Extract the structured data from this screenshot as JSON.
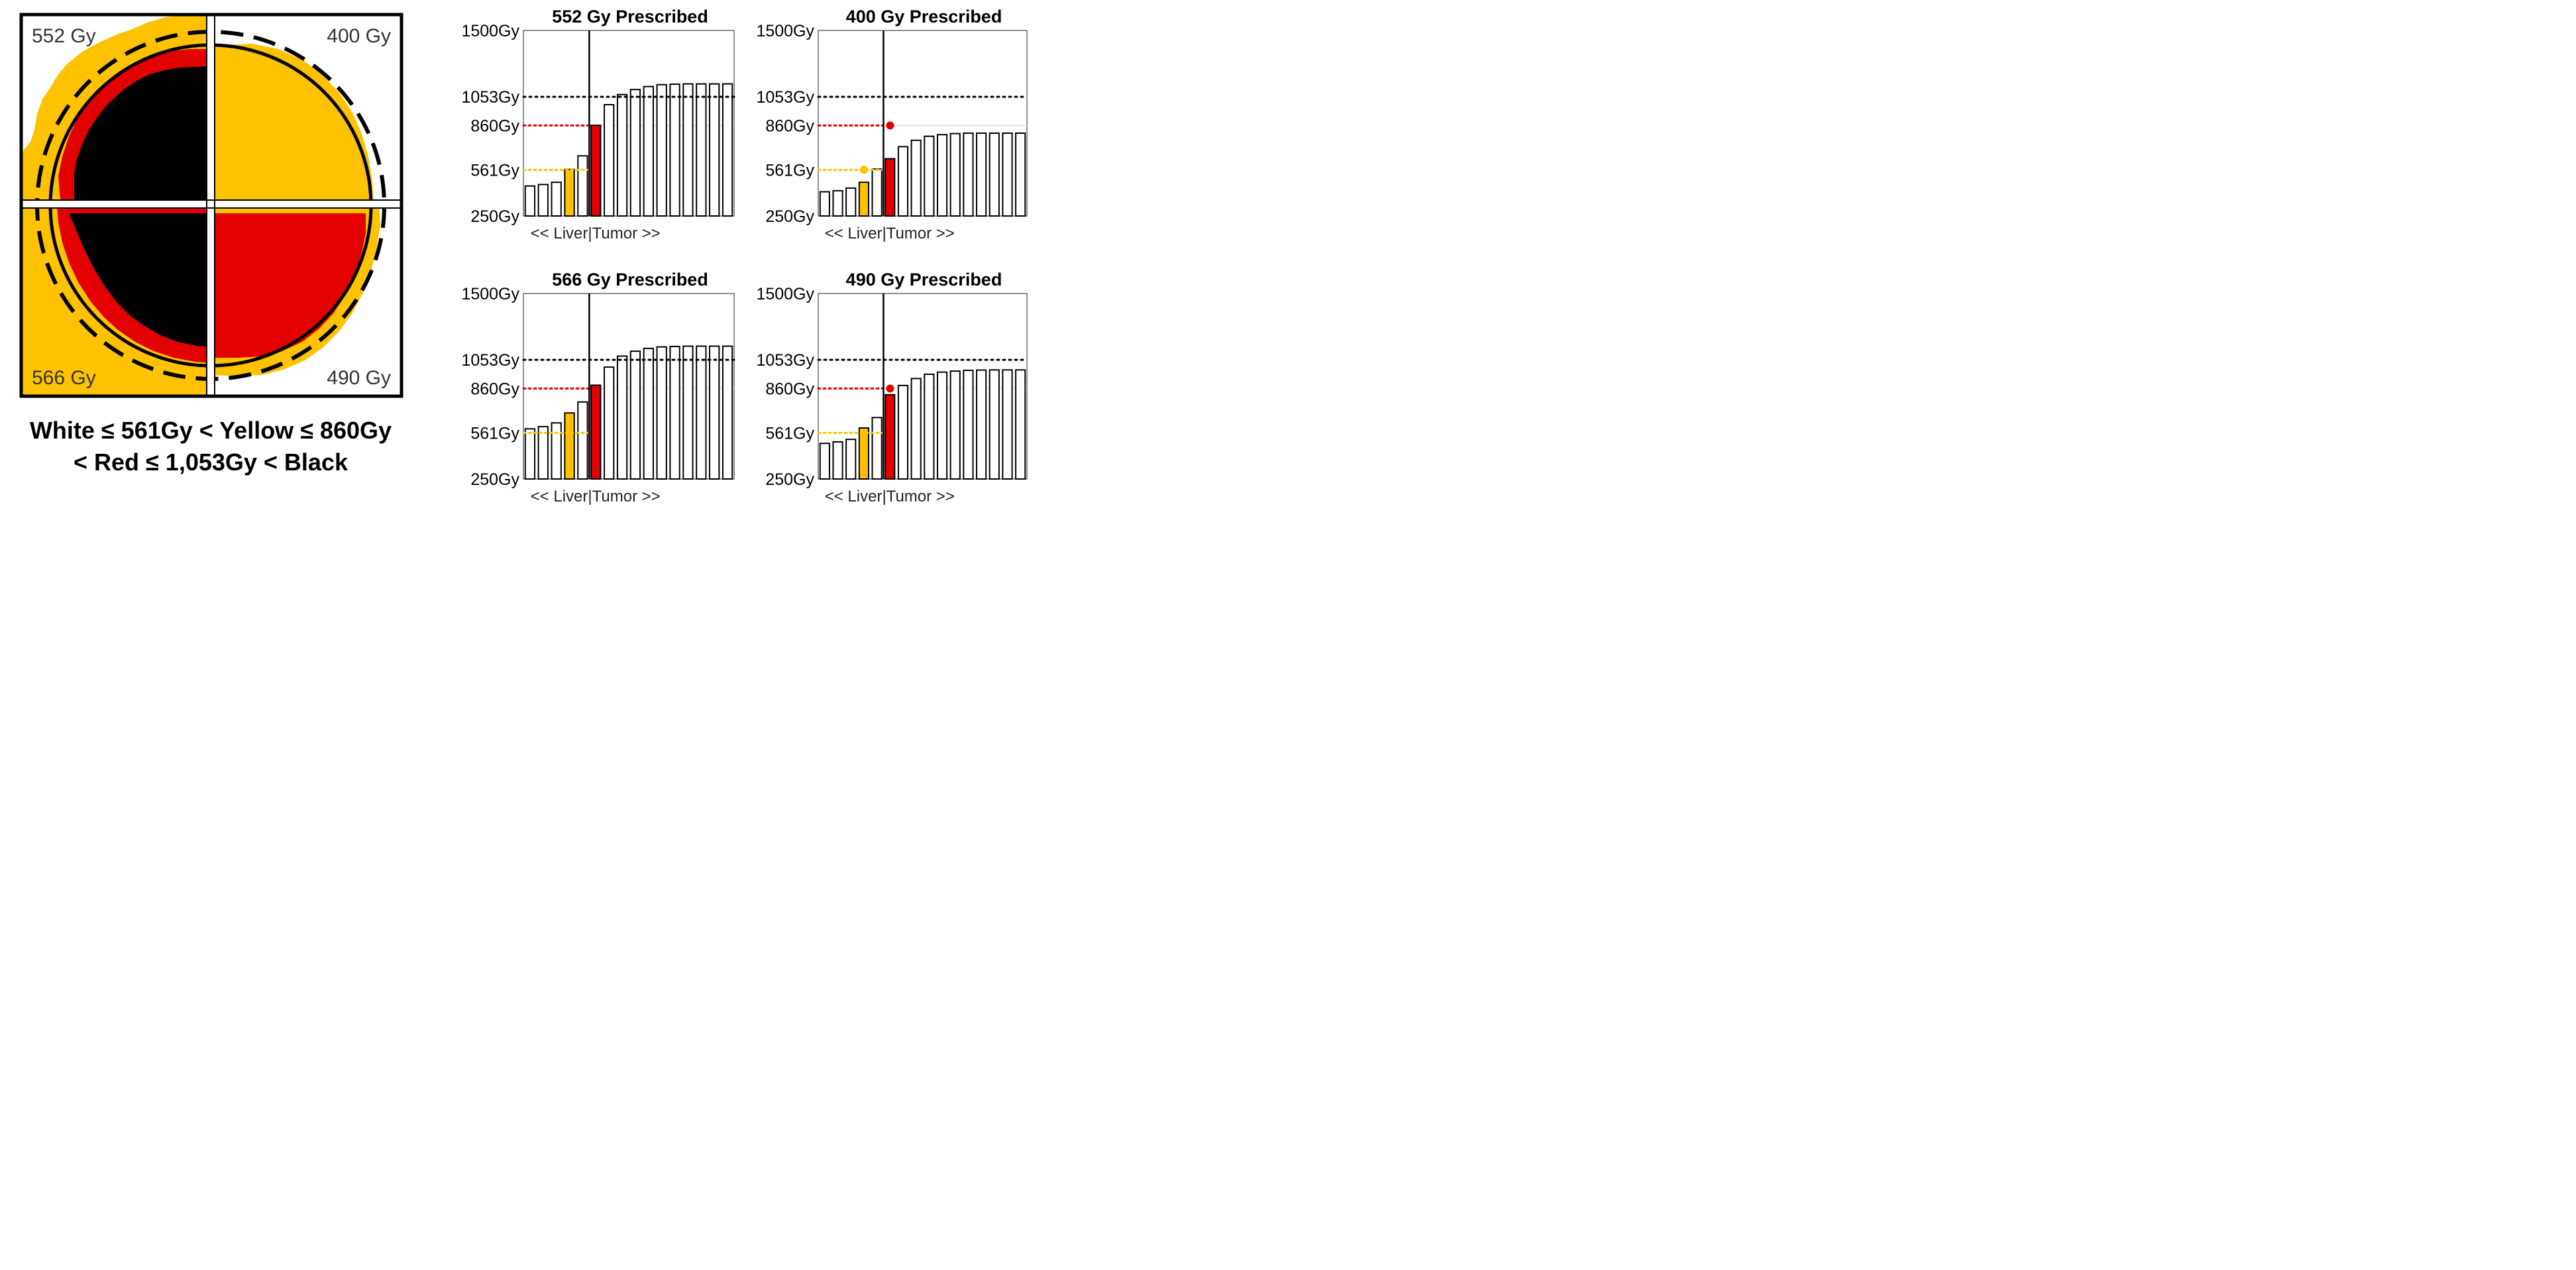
{
  "colors": {
    "white": "#ffffff",
    "yellow": "#ffc200",
    "red": "#e20000",
    "black": "#000000",
    "bar_outline": "#000000",
    "grid_light": "#e2e2e2"
  },
  "dose_map": {
    "quadrant_labels": {
      "top_left": "552 Gy",
      "top_right": "400 Gy",
      "bottom_left": "566 Gy",
      "bottom_right": "490 Gy"
    }
  },
  "caption": {
    "line1": "White ≤ 561Gy < Yellow  ≤ 860Gy",
    "line2": "< Red  ≤ 1,053Gy < Black"
  },
  "chart_data": [
    {
      "type": "bar",
      "title": "552 Gy Prescribed",
      "ylim": [
        250,
        1500
      ],
      "yticks": [
        250,
        561,
        860,
        1053,
        1500
      ],
      "ytick_labels": [
        "250Gy",
        "561Gy",
        "860Gy",
        "1053Gy",
        "1500Gy"
      ],
      "x_label_left": "<< Liver",
      "x_label_right": "|Tumor >>",
      "liver_bar_count": 5,
      "values": [
        452,
        462,
        477,
        564,
        655,
        861,
        1000,
        1068,
        1102,
        1122,
        1135,
        1138,
        1140,
        1140,
        1140,
        1140
      ],
      "bar_colors": [
        "white",
        "white",
        "white",
        "yellow",
        "white",
        "red",
        "white",
        "white",
        "white",
        "white",
        "white",
        "white",
        "white",
        "white",
        "white",
        "white"
      ],
      "ref_lines": [
        {
          "value": 1053,
          "color": "black",
          "span": "full"
        },
        {
          "value": 860,
          "color": "red",
          "span": "liver"
        },
        {
          "value": 561,
          "color": "yellow",
          "span": "liver"
        }
      ],
      "markers": []
    },
    {
      "type": "bar",
      "title": "400 Gy Prescribed",
      "ylim": [
        250,
        1500
      ],
      "yticks": [
        250,
        561,
        860,
        1053,
        1500
      ],
      "ytick_labels": [
        "250Gy",
        "561Gy",
        "860Gy",
        "1053Gy",
        "1500Gy"
      ],
      "x_label_left": "<< Liver",
      "x_label_right": "|Tumor >>",
      "liver_bar_count": 5,
      "values": [
        413,
        420,
        438,
        477,
        566,
        636,
        717,
        760,
        787,
        798,
        805,
        808,
        808,
        808,
        808,
        808
      ],
      "bar_colors": [
        "white",
        "white",
        "white",
        "yellow",
        "white",
        "red",
        "white",
        "white",
        "white",
        "white",
        "white",
        "white",
        "white",
        "white",
        "white",
        "white"
      ],
      "ref_lines": [
        {
          "value": 1053,
          "color": "black",
          "span": "full"
        },
        {
          "value": 860,
          "color": "red",
          "span": "liver"
        },
        {
          "value": 561,
          "color": "yellow",
          "span": "liver"
        }
      ],
      "markers": [
        {
          "bar": 3,
          "value": 561,
          "color": "yellow"
        },
        {
          "bar": 5,
          "value": 860,
          "color": "red"
        }
      ]
    },
    {
      "type": "bar",
      "title": "566 Gy Prescribed",
      "ylim": [
        250,
        1500
      ],
      "yticks": [
        250,
        561,
        860,
        1053,
        1500
      ],
      "ytick_labels": [
        "250Gy",
        "561Gy",
        "860Gy",
        "1053Gy",
        "1500Gy"
      ],
      "x_label_left": "<< Liver",
      "x_label_right": "|Tumor >>",
      "liver_bar_count": 5,
      "values": [
        588,
        603,
        628,
        695,
        769,
        882,
        1004,
        1078,
        1111,
        1130,
        1140,
        1143,
        1145,
        1145,
        1145,
        1145
      ],
      "bar_colors": [
        "white",
        "white",
        "white",
        "yellow",
        "white",
        "red",
        "white",
        "white",
        "white",
        "white",
        "white",
        "white",
        "white",
        "white",
        "white",
        "white"
      ],
      "ref_lines": [
        {
          "value": 1053,
          "color": "black",
          "span": "full"
        },
        {
          "value": 860,
          "color": "red",
          "span": "liver"
        },
        {
          "value": 561,
          "color": "yellow",
          "span": "liver"
        }
      ],
      "markers": []
    },
    {
      "type": "bar",
      "title": "490 Gy Prescribed",
      "ylim": [
        250,
        1500
      ],
      "yticks": [
        250,
        561,
        860,
        1053,
        1500
      ],
      "ytick_labels": [
        "250Gy",
        "561Gy",
        "860Gy",
        "1053Gy",
        "1500Gy"
      ],
      "x_label_left": "<< Liver",
      "x_label_right": "|Tumor >>",
      "liver_bar_count": 5,
      "values": [
        490,
        500,
        517,
        594,
        664,
        818,
        880,
        927,
        956,
        970,
        977,
        982,
        984,
        985,
        985,
        985
      ],
      "bar_colors": [
        "white",
        "white",
        "white",
        "yellow",
        "white",
        "red",
        "white",
        "white",
        "white",
        "white",
        "white",
        "white",
        "white",
        "white",
        "white",
        "white"
      ],
      "ref_lines": [
        {
          "value": 1053,
          "color": "black",
          "span": "full"
        },
        {
          "value": 860,
          "color": "red",
          "span": "liver"
        },
        {
          "value": 561,
          "color": "yellow",
          "span": "liver"
        }
      ],
      "markers": [
        {
          "bar": 3,
          "value": 561,
          "color": "yellow"
        },
        {
          "bar": 5,
          "value": 860,
          "color": "red"
        }
      ]
    }
  ]
}
